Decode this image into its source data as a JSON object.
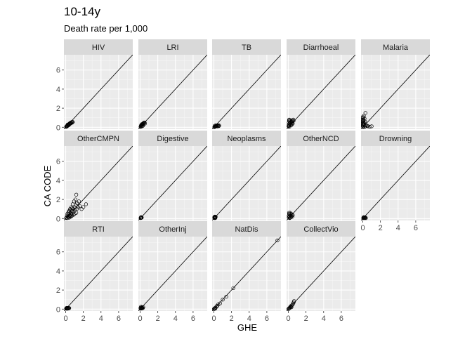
{
  "chart_data": {
    "type": "scatter",
    "title": "10-14y",
    "subtitle": "Death rate per 1,000",
    "xlabel": "GHE",
    "ylabel": "CA CODE",
    "xlim": [
      -0.2,
      7.6
    ],
    "ylim": [
      -0.2,
      7.6
    ],
    "x_ticks": [
      0,
      2,
      4,
      6
    ],
    "y_ticks": [
      0,
      2,
      4,
      6
    ],
    "grid": true,
    "reference_line": "y = x",
    "facets": [
      {
        "name": "HIV",
        "points": [
          [
            0.05,
            0.05
          ],
          [
            0.1,
            0.08
          ],
          [
            0.12,
            0.12
          ],
          [
            0.15,
            0.1
          ],
          [
            0.18,
            0.18
          ],
          [
            0.2,
            0.15
          ],
          [
            0.25,
            0.22
          ],
          [
            0.3,
            0.2
          ],
          [
            0.28,
            0.3
          ],
          [
            0.35,
            0.3
          ],
          [
            0.4,
            0.35
          ],
          [
            0.45,
            0.4
          ],
          [
            0.5,
            0.45
          ],
          [
            0.55,
            0.42
          ],
          [
            0.6,
            0.5
          ],
          [
            0.65,
            0.45
          ],
          [
            0.7,
            0.55
          ],
          [
            0.75,
            0.5
          ],
          [
            0.8,
            0.55
          ],
          [
            0.22,
            0.28
          ],
          [
            0.38,
            0.25
          ],
          [
            0.52,
            0.38
          ]
        ]
      },
      {
        "name": "LRI",
        "points": [
          [
            0.05,
            0.05
          ],
          [
            0.08,
            0.1
          ],
          [
            0.12,
            0.15
          ],
          [
            0.15,
            0.2
          ],
          [
            0.2,
            0.25
          ],
          [
            0.25,
            0.3
          ],
          [
            0.3,
            0.35
          ],
          [
            0.35,
            0.4
          ],
          [
            0.4,
            0.45
          ],
          [
            0.45,
            0.5
          ],
          [
            0.5,
            0.5
          ],
          [
            0.3,
            0.15
          ],
          [
            0.2,
            0.1
          ],
          [
            0.4,
            0.3
          ],
          [
            0.55,
            0.4
          ],
          [
            0.18,
            0.32
          ],
          [
            0.1,
            0.2
          ]
        ]
      },
      {
        "name": "TB",
        "points": [
          [
            0.05,
            0.02
          ],
          [
            0.1,
            0.05
          ],
          [
            0.15,
            0.08
          ],
          [
            0.2,
            0.1
          ],
          [
            0.25,
            0.12
          ],
          [
            0.3,
            0.15
          ],
          [
            0.35,
            0.18
          ],
          [
            0.4,
            0.1
          ],
          [
            0.45,
            0.15
          ],
          [
            0.5,
            0.2
          ],
          [
            0.55,
            0.12
          ],
          [
            0.6,
            0.18
          ],
          [
            0.1,
            0.15
          ],
          [
            0.2,
            0.2
          ]
        ]
      },
      {
        "name": "Diarrhoeal",
        "points": [
          [
            0.02,
            0.1
          ],
          [
            0.05,
            0.3
          ],
          [
            0.05,
            0.5
          ],
          [
            0.08,
            0.7
          ],
          [
            0.1,
            0.8
          ],
          [
            0.1,
            0.2
          ],
          [
            0.15,
            0.4
          ],
          [
            0.15,
            0.6
          ],
          [
            0.2,
            0.3
          ],
          [
            0.2,
            0.75
          ],
          [
            0.25,
            0.5
          ],
          [
            0.3,
            0.6
          ],
          [
            0.35,
            0.4
          ],
          [
            0.4,
            0.7
          ],
          [
            0.45,
            0.55
          ],
          [
            0.5,
            0.65
          ],
          [
            0.55,
            0.8
          ],
          [
            0.6,
            0.7
          ],
          [
            0.3,
            0.2
          ],
          [
            0.4,
            0.3
          ],
          [
            0.1,
            0.05
          ],
          [
            0.5,
            0.4
          ],
          [
            0.05,
            0.15
          ]
        ]
      },
      {
        "name": "Malaria",
        "points": [
          [
            0.01,
            0.1
          ],
          [
            0.01,
            0.3
          ],
          [
            0.01,
            0.5
          ],
          [
            0.01,
            0.7
          ],
          [
            0.01,
            0.9
          ],
          [
            0.02,
            1.1
          ],
          [
            0.02,
            0.2
          ],
          [
            0.03,
            0.4
          ],
          [
            0.03,
            0.6
          ],
          [
            0.05,
            0.8
          ],
          [
            0.05,
            1.0
          ],
          [
            0.08,
            0.3
          ],
          [
            0.1,
            0.5
          ],
          [
            0.1,
            0.7
          ],
          [
            0.12,
            1.2
          ],
          [
            0.15,
            0.4
          ],
          [
            0.2,
            0.9
          ],
          [
            0.25,
            0.6
          ],
          [
            0.3,
            1.5
          ],
          [
            0.3,
            0.1
          ],
          [
            0.5,
            0.15
          ],
          [
            0.6,
            0.1
          ],
          [
            0.8,
            0.05
          ],
          [
            1.0,
            0.1
          ],
          [
            0.4,
            0.2
          ],
          [
            0.2,
            0.05
          ],
          [
            0.05,
            0.02
          ]
        ]
      },
      {
        "name": "OtherCMPN",
        "points": [
          [
            0.1,
            0.1
          ],
          [
            0.15,
            0.3
          ],
          [
            0.2,
            0.5
          ],
          [
            0.25,
            0.2
          ],
          [
            0.3,
            0.6
          ],
          [
            0.35,
            0.4
          ],
          [
            0.4,
            0.8
          ],
          [
            0.45,
            0.3
          ],
          [
            0.5,
            1.0
          ],
          [
            0.55,
            0.6
          ],
          [
            0.6,
            0.4
          ],
          [
            0.65,
            1.2
          ],
          [
            0.7,
            0.8
          ],
          [
            0.75,
            0.5
          ],
          [
            0.8,
            1.5
          ],
          [
            0.85,
            1.0
          ],
          [
            0.9,
            0.7
          ],
          [
            0.95,
            1.8
          ],
          [
            1.0,
            1.2
          ],
          [
            1.05,
            0.9
          ],
          [
            1.1,
            2.0
          ],
          [
            1.15,
            1.4
          ],
          [
            1.2,
            2.5
          ],
          [
            1.25,
            1.0
          ],
          [
            1.3,
            1.6
          ],
          [
            1.4,
            1.2
          ],
          [
            1.5,
            1.8
          ],
          [
            1.6,
            1.3
          ],
          [
            1.8,
            1.0
          ],
          [
            2.0,
            1.2
          ],
          [
            2.3,
            1.5
          ],
          [
            0.3,
            0.15
          ],
          [
            0.5,
            0.25
          ],
          [
            0.7,
            0.3
          ],
          [
            0.9,
            0.4
          ],
          [
            0.2,
            0.05
          ],
          [
            0.4,
            0.1
          ],
          [
            0.6,
            0.2
          ],
          [
            1.0,
            0.5
          ],
          [
            1.2,
            0.6
          ],
          [
            0.05,
            0.05
          ],
          [
            0.35,
            0.7
          ],
          [
            0.55,
            0.9
          ],
          [
            0.75,
            1.1
          ]
        ]
      },
      {
        "name": "Digestive",
        "points": [
          [
            0.05,
            0.05
          ],
          [
            0.08,
            0.08
          ],
          [
            0.1,
            0.1
          ],
          [
            0.12,
            0.08
          ],
          [
            0.15,
            0.12
          ],
          [
            0.1,
            0.15
          ],
          [
            0.18,
            0.1
          ]
        ]
      },
      {
        "name": "Neoplasms",
        "points": [
          [
            0.05,
            0.05
          ],
          [
            0.08,
            0.1
          ],
          [
            0.1,
            0.12
          ],
          [
            0.12,
            0.08
          ],
          [
            0.15,
            0.15
          ],
          [
            0.18,
            0.1
          ],
          [
            0.2,
            0.18
          ],
          [
            0.1,
            0.2
          ],
          [
            0.05,
            0.15
          ],
          [
            0.15,
            0.05
          ]
        ]
      },
      {
        "name": "OtherNCD",
        "points": [
          [
            0.05,
            0.1
          ],
          [
            0.05,
            0.3
          ],
          [
            0.1,
            0.5
          ],
          [
            0.1,
            0.2
          ],
          [
            0.15,
            0.4
          ],
          [
            0.2,
            0.6
          ],
          [
            0.2,
            0.1
          ],
          [
            0.25,
            0.3
          ],
          [
            0.3,
            0.5
          ],
          [
            0.3,
            0.15
          ],
          [
            0.35,
            0.25
          ],
          [
            0.4,
            0.45
          ],
          [
            0.45,
            0.2
          ],
          [
            0.5,
            0.35
          ],
          [
            0.15,
            0.05
          ],
          [
            0.08,
            0.6
          ]
        ]
      },
      {
        "name": "Drowning",
        "points": [
          [
            0.05,
            0.05
          ],
          [
            0.1,
            0.08
          ],
          [
            0.15,
            0.1
          ],
          [
            0.2,
            0.12
          ],
          [
            0.25,
            0.08
          ],
          [
            0.3,
            0.1
          ],
          [
            0.35,
            0.05
          ],
          [
            0.1,
            0.15
          ],
          [
            0.2,
            0.05
          ]
        ]
      },
      {
        "name": "RTI",
        "points": [
          [
            0.05,
            0.05
          ],
          [
            0.1,
            0.08
          ],
          [
            0.15,
            0.1
          ],
          [
            0.2,
            0.12
          ],
          [
            0.25,
            0.1
          ],
          [
            0.3,
            0.08
          ],
          [
            0.35,
            0.12
          ],
          [
            0.4,
            0.1
          ],
          [
            0.1,
            0.12
          ],
          [
            0.2,
            0.05
          ]
        ]
      },
      {
        "name": "OtherInj",
        "points": [
          [
            0.05,
            0.05
          ],
          [
            0.1,
            0.1
          ],
          [
            0.15,
            0.15
          ],
          [
            0.2,
            0.2
          ],
          [
            0.25,
            0.15
          ],
          [
            0.3,
            0.1
          ],
          [
            0.35,
            0.2
          ],
          [
            0.1,
            0.25
          ],
          [
            0.2,
            0.08
          ],
          [
            0.05,
            0.15
          ]
        ]
      },
      {
        "name": "NatDis",
        "points": [
          [
            0.01,
            0.01
          ],
          [
            0.05,
            0.05
          ],
          [
            0.1,
            0.1
          ],
          [
            0.2,
            0.15
          ],
          [
            0.3,
            0.3
          ],
          [
            0.5,
            0.5
          ],
          [
            0.7,
            0.6
          ],
          [
            1.0,
            1.0
          ],
          [
            1.4,
            1.3
          ],
          [
            2.2,
            2.2
          ],
          [
            7.2,
            7.2
          ],
          [
            0.15,
            0.05
          ],
          [
            0.4,
            0.35
          ]
        ]
      },
      {
        "name": "CollectVio",
        "points": [
          [
            0.01,
            0.01
          ],
          [
            0.05,
            0.05
          ],
          [
            0.1,
            0.1
          ],
          [
            0.15,
            0.12
          ],
          [
            0.2,
            0.2
          ],
          [
            0.25,
            0.3
          ],
          [
            0.3,
            0.25
          ],
          [
            0.4,
            0.4
          ],
          [
            0.5,
            0.5
          ],
          [
            0.6,
            0.7
          ],
          [
            0.65,
            0.85
          ],
          [
            0.55,
            0.6
          ],
          [
            0.35,
            0.2
          ]
        ]
      }
    ]
  }
}
